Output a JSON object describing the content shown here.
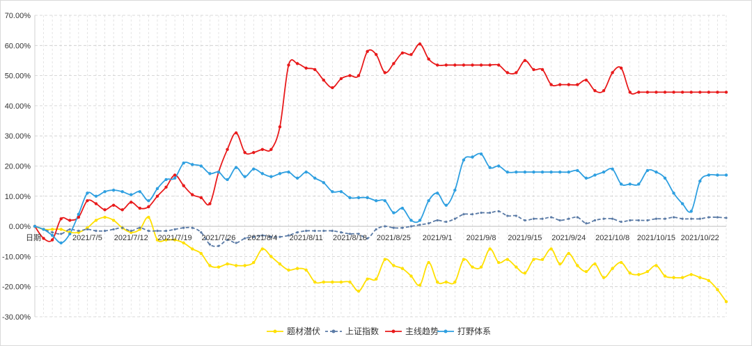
{
  "chart_data": {
    "type": "line",
    "title": "",
    "xlabel": "日期",
    "ylabel": "",
    "ylim": [
      -0.3,
      0.7
    ],
    "y_ticks": [
      0.7,
      0.6,
      0.5,
      0.4,
      0.3,
      0.2,
      0.1,
      0.0,
      -0.1,
      -0.2,
      -0.3
    ],
    "y_tick_labels": [
      "70.00%",
      "60.00%",
      "50.00%",
      "40.00%",
      "30.00%",
      "20.00%",
      "10.00%",
      "0.00%",
      "-10.00%",
      "-20.00%",
      "-30.00%"
    ],
    "x_tick_labels": [
      {
        "index": 6,
        "label": "2021/7/5"
      },
      {
        "index": 11,
        "label": "2021/7/12"
      },
      {
        "index": 16,
        "label": "2021/7/19"
      },
      {
        "index": 21,
        "label": "2021/7/26"
      },
      {
        "index": 26,
        "label": "2021/8/4"
      },
      {
        "index": 31,
        "label": "2021/8/11"
      },
      {
        "index": 36,
        "label": "2021/8/18"
      },
      {
        "index": 41,
        "label": "2021/8/25"
      },
      {
        "index": 46,
        "label": "2021/9/1"
      },
      {
        "index": 51,
        "label": "2021/9/8"
      },
      {
        "index": 56,
        "label": "2021/9/15"
      },
      {
        "index": 61,
        "label": "2021/9/24"
      },
      {
        "index": 66,
        "label": "2021/10/8"
      },
      {
        "index": 71,
        "label": "2021/10/15"
      },
      {
        "index": 76,
        "label": "2021/10/22"
      }
    ],
    "grid": true,
    "legend_position": "bottom",
    "series": [
      {
        "name": "题材潜伏",
        "color": "#FFE000",
        "style": "solid",
        "values": [
          0.0,
          -0.01,
          -0.01,
          -0.01,
          -0.02,
          -0.02,
          -0.005,
          0.02,
          0.03,
          0.02,
          -0.005,
          -0.02,
          -0.01,
          0.03,
          -0.045,
          -0.045,
          -0.045,
          -0.055,
          -0.075,
          -0.09,
          -0.13,
          -0.135,
          -0.125,
          -0.13,
          -0.13,
          -0.12,
          -0.075,
          -0.1,
          -0.125,
          -0.145,
          -0.14,
          -0.145,
          -0.185,
          -0.185,
          -0.185,
          -0.185,
          -0.185,
          -0.215,
          -0.175,
          -0.175,
          -0.11,
          -0.13,
          -0.14,
          -0.165,
          -0.195,
          -0.12,
          -0.185,
          -0.185,
          -0.185,
          -0.11,
          -0.135,
          -0.135,
          -0.075,
          -0.12,
          -0.11,
          -0.135,
          -0.155,
          -0.11,
          -0.11,
          -0.075,
          -0.125,
          -0.09,
          -0.13,
          -0.15,
          -0.125,
          -0.17,
          -0.14,
          -0.12,
          -0.155,
          -0.16,
          -0.15,
          -0.13,
          -0.165,
          -0.17,
          -0.17,
          -0.16,
          -0.17,
          -0.18,
          -0.21,
          -0.25
        ]
      },
      {
        "name": "上证指数",
        "color": "#5B7BA6",
        "style": "dashed",
        "values": [
          0.0,
          -0.01,
          -0.02,
          -0.025,
          -0.01,
          -0.015,
          -0.01,
          -0.015,
          -0.015,
          -0.01,
          -0.005,
          -0.015,
          -0.005,
          -0.015,
          -0.015,
          -0.015,
          -0.01,
          -0.005,
          -0.005,
          -0.02,
          -0.06,
          -0.065,
          -0.045,
          -0.055,
          -0.04,
          -0.035,
          -0.03,
          -0.035,
          -0.035,
          -0.03,
          -0.02,
          -0.015,
          -0.015,
          -0.015,
          -0.015,
          -0.02,
          -0.025,
          -0.025,
          -0.04,
          -0.01,
          0.0,
          -0.005,
          -0.005,
          0.0,
          0.005,
          0.01,
          0.02,
          0.015,
          0.025,
          0.04,
          0.04,
          0.045,
          0.045,
          0.05,
          0.035,
          0.035,
          0.02,
          0.025,
          0.025,
          0.03,
          0.02,
          0.025,
          0.03,
          0.01,
          0.02,
          0.025,
          0.025,
          0.015,
          0.02,
          0.02,
          0.02,
          0.025,
          0.025,
          0.03,
          0.025,
          0.025,
          0.025,
          0.03,
          0.03,
          0.028
        ]
      },
      {
        "name": "主线趋势",
        "color": "#E8191A",
        "style": "solid",
        "values": [
          0.0,
          -0.04,
          -0.045,
          0.025,
          0.02,
          0.03,
          0.085,
          0.075,
          0.055,
          0.07,
          0.055,
          0.08,
          0.06,
          0.065,
          0.1,
          0.13,
          0.17,
          0.135,
          0.105,
          0.095,
          0.075,
          0.18,
          0.255,
          0.31,
          0.245,
          0.245,
          0.255,
          0.255,
          0.33,
          0.535,
          0.54,
          0.525,
          0.52,
          0.485,
          0.46,
          0.49,
          0.5,
          0.5,
          0.58,
          0.57,
          0.51,
          0.54,
          0.575,
          0.57,
          0.605,
          0.555,
          0.535,
          0.535,
          0.535,
          0.535,
          0.535,
          0.535,
          0.535,
          0.535,
          0.51,
          0.51,
          0.55,
          0.52,
          0.52,
          0.47,
          0.47,
          0.47,
          0.47,
          0.485,
          0.45,
          0.45,
          0.51,
          0.525,
          0.445,
          0.445,
          0.445,
          0.445,
          0.445,
          0.445,
          0.445,
          0.445,
          0.445,
          0.445,
          0.445,
          0.445
        ]
      },
      {
        "name": "打野体系",
        "color": "#2E9FE0",
        "style": "solid",
        "values": [
          0.0,
          -0.01,
          -0.03,
          -0.055,
          -0.025,
          0.04,
          0.11,
          0.1,
          0.115,
          0.12,
          0.115,
          0.105,
          0.115,
          0.085,
          0.125,
          0.155,
          0.16,
          0.21,
          0.205,
          0.2,
          0.175,
          0.18,
          0.155,
          0.195,
          0.165,
          0.19,
          0.175,
          0.165,
          0.175,
          0.18,
          0.16,
          0.18,
          0.16,
          0.145,
          0.115,
          0.115,
          0.095,
          0.095,
          0.095,
          0.085,
          0.085,
          0.045,
          0.06,
          0.02,
          0.02,
          0.085,
          0.11,
          0.07,
          0.12,
          0.22,
          0.23,
          0.24,
          0.195,
          0.2,
          0.18,
          0.18,
          0.18,
          0.18,
          0.18,
          0.18,
          0.18,
          0.18,
          0.185,
          0.16,
          0.17,
          0.18,
          0.19,
          0.14,
          0.14,
          0.14,
          0.185,
          0.18,
          0.16,
          0.11,
          0.075,
          0.05,
          0.15,
          0.17,
          0.17,
          0.17
        ]
      }
    ]
  }
}
